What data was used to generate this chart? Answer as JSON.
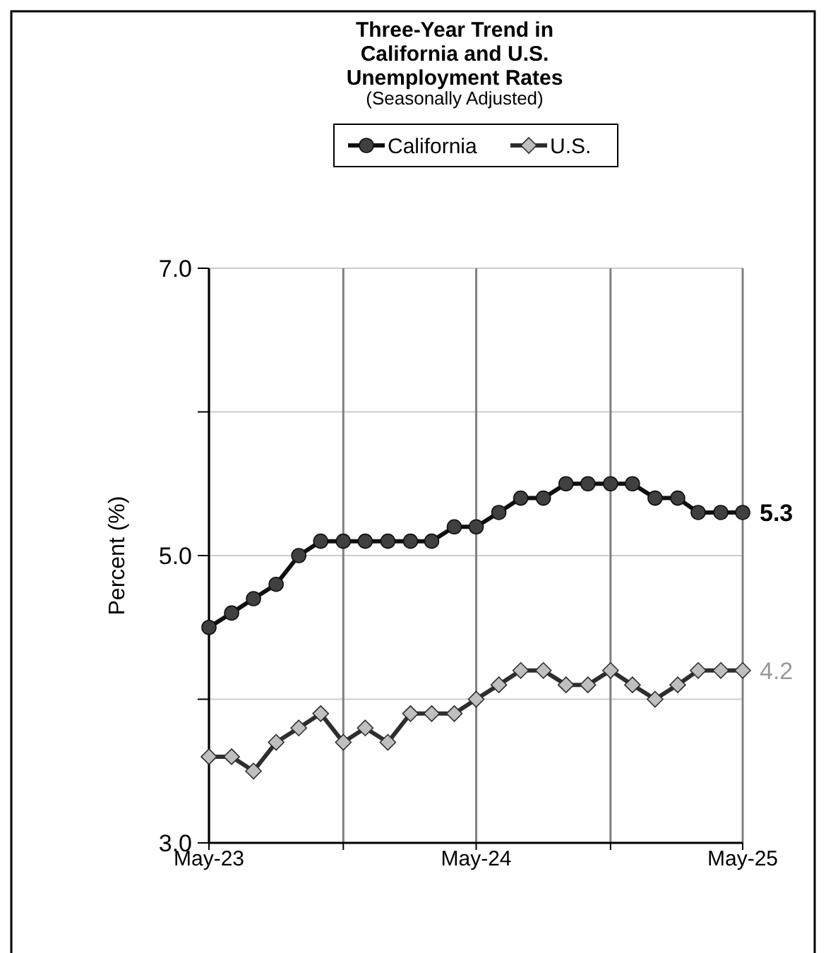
{
  "chart_data": {
    "type": "line",
    "title": "Three-Year Trend in California and U.S. Unemployment Rates",
    "subtitle": "(Seasonally Adjusted)",
    "ylabel": "Percent (%)",
    "x": [
      "2023-05",
      "2023-06",
      "2023-07",
      "2023-08",
      "2023-09",
      "2023-10",
      "2023-11",
      "2023-12",
      "2024-01",
      "2024-02",
      "2024-03",
      "2024-04",
      "2024-05",
      "2024-06",
      "2024-07",
      "2024-08",
      "2024-09",
      "2024-10",
      "2024-11",
      "2024-12",
      "2025-01",
      "2025-02",
      "2025-03",
      "2025-04",
      "2025-05"
    ],
    "series": [
      {
        "name": "California",
        "color": "#404040",
        "marker": "circle",
        "values": [
          4.5,
          4.6,
          4.7,
          4.8,
          5.0,
          5.1,
          5.1,
          5.1,
          5.1,
          5.1,
          5.1,
          5.2,
          5.2,
          5.3,
          5.4,
          5.4,
          5.5,
          5.5,
          5.5,
          5.5,
          5.4,
          5.4,
          5.3,
          5.3,
          5.3
        ],
        "value_labels": [
          null,
          null,
          null,
          null,
          null,
          null,
          null,
          null,
          null,
          null,
          null,
          null,
          null,
          null,
          null,
          null,
          null,
          null,
          null,
          null,
          null,
          null,
          null,
          null,
          "5.3"
        ]
      },
      {
        "name": "U.S.",
        "color": "#bfbfbf",
        "marker": "diamond",
        "values": [
          3.6,
          3.6,
          3.5,
          3.7,
          3.8,
          3.9,
          3.7,
          3.8,
          3.7,
          3.9,
          3.9,
          3.9,
          4.0,
          4.1,
          4.2,
          4.2,
          4.1,
          4.1,
          4.2,
          4.1,
          4.0,
          4.1,
          4.2,
          4.2,
          4.2
        ],
        "value_labels": [
          null,
          null,
          null,
          null,
          null,
          null,
          null,
          null,
          null,
          null,
          null,
          null,
          null,
          null,
          null,
          null,
          null,
          null,
          null,
          null,
          null,
          null,
          null,
          null,
          "4.2"
        ]
      }
    ],
    "xlim": [
      "2023-05",
      "2025-05"
    ],
    "xticks": [
      {
        "value": "2023-05",
        "label": "May-23"
      },
      {
        "value": "2023-11",
        "label": null
      },
      {
        "value": "2024-05",
        "label": "May-24"
      },
      {
        "value": "2024-11",
        "label": null
      },
      {
        "value": "2025-05",
        "label": "May-25"
      }
    ],
    "ylim": [
      3,
      7
    ],
    "yticks": [
      {
        "value": 3,
        "label": "3.0"
      },
      {
        "value": 4,
        "label": null
      },
      {
        "value": 5,
        "label": "5.0"
      },
      {
        "value": 6,
        "label": null
      },
      {
        "value": 7,
        "label": "7.0"
      }
    ],
    "grid": true,
    "legend": "top"
  }
}
